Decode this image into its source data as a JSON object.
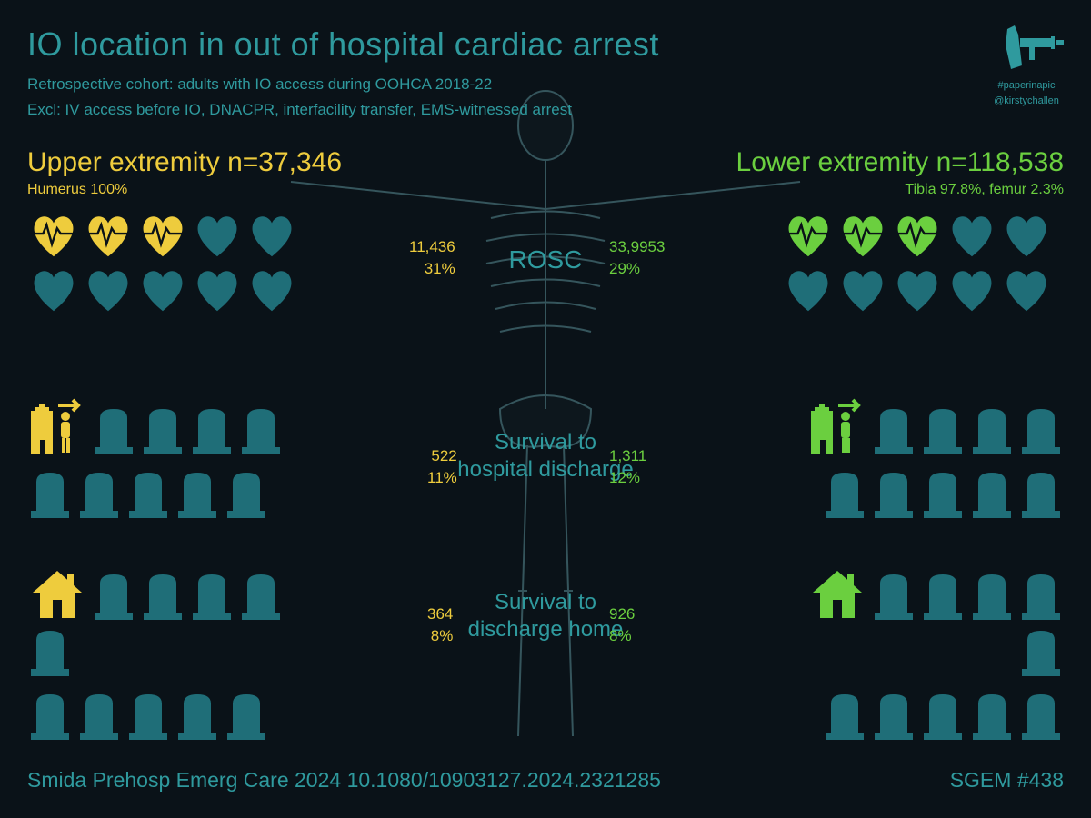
{
  "colors": {
    "teal": "#2f9a9e",
    "teal_fill": "#1f6e78",
    "yellow": "#eecc3d",
    "green": "#6bcf3f",
    "bg": "#0a1218"
  },
  "header": {
    "title": "IO location in out of hospital cardiac arrest",
    "sub1": "Retrospective cohort: adults with IO access during OOHCA 2018-22",
    "sub2": "Excl: IV access before IO, DNACPR, interfacility transfer, EMS-witnessed arrest"
  },
  "logo": {
    "tag": "#paperinapic",
    "handle": "@kirstychallen"
  },
  "upper": {
    "title": "Upper extremity n=37,346",
    "sub": "Humerus 100%",
    "color": "#eecc3d",
    "rosc": {
      "n": "11,436",
      "pct": "31%",
      "highlighted": 3
    },
    "disch": {
      "n": "522",
      "pct": "11%",
      "highlighted": 1
    },
    "home": {
      "n": "364",
      "pct": "8%",
      "highlighted": 1
    }
  },
  "lower": {
    "title": "Lower extremity n=118,538",
    "sub": "Tibia 97.8%, femur 2.3%",
    "color": "#6bcf3f",
    "rosc": {
      "n": "33,9953",
      "pct": "29%",
      "highlighted": 3
    },
    "disch": {
      "n": "1,311",
      "pct": "12%",
      "highlighted": 1
    },
    "home": {
      "n": "926",
      "pct": "8%",
      "highlighted": 1
    }
  },
  "outcomes": {
    "rosc": "ROSC",
    "disch": "Survival to hospital discharge",
    "home": "Survival to discharge home"
  },
  "footer": {
    "cite": "Smida Prehosp Emerg Care 2024 10.1080/10903127.2024.2321285",
    "ep": "SGEM #438"
  },
  "layout": {
    "heart_total": 10,
    "tomb_disch_total": 9,
    "tomb_home_total": 10
  }
}
